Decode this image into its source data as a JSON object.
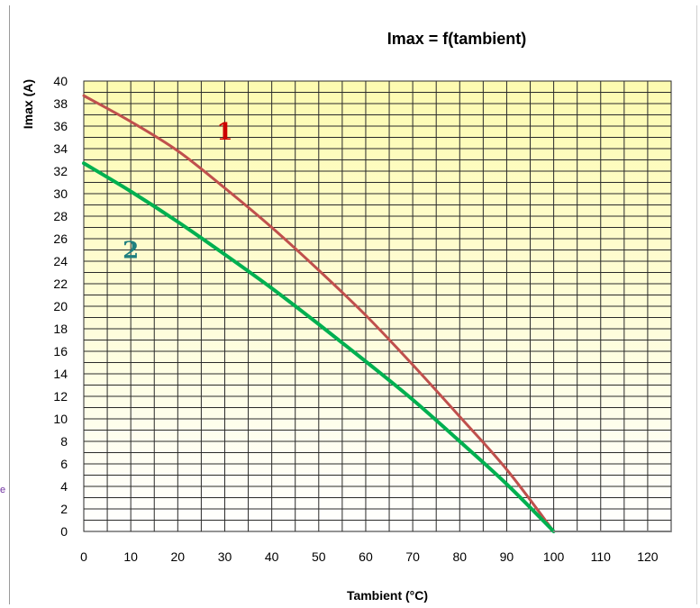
{
  "chart_data": {
    "type": "line",
    "title": "Imax = f(tambient)",
    "xlabel": "Tambient (°C)",
    "ylabel": "Imax (A)",
    "xlim": [
      0,
      125
    ],
    "ylim": [
      0,
      40
    ],
    "x_ticks": [
      0,
      10,
      20,
      30,
      40,
      50,
      60,
      70,
      80,
      90,
      100,
      110,
      120
    ],
    "y_ticks": [
      0,
      2,
      4,
      6,
      8,
      10,
      12,
      14,
      16,
      18,
      20,
      22,
      24,
      26,
      28,
      30,
      32,
      34,
      36,
      38,
      40
    ],
    "grid": true,
    "series": [
      {
        "name": "1",
        "color": "#c0504d",
        "x": [
          0,
          10,
          20,
          30,
          40,
          50,
          60,
          70,
          80,
          90,
          100
        ],
        "y": [
          38.7,
          36.4,
          33.8,
          30.5,
          27.0,
          23.2,
          19.2,
          14.8,
          10.2,
          5.5,
          0
        ]
      },
      {
        "name": "2",
        "color": "#00b050",
        "x": [
          0,
          10,
          20,
          30,
          40,
          50,
          60,
          70,
          80,
          90,
          100
        ],
        "y": [
          32.7,
          30.2,
          27.5,
          24.6,
          21.6,
          18.4,
          15.1,
          11.7,
          8.0,
          4.2,
          0
        ]
      },
      {
        "name": "",
        "color": "#7f7f7f",
        "x": [
          100,
          125
        ],
        "y": [
          0,
          0
        ]
      }
    ],
    "annotations": [
      {
        "text": "1",
        "x": 30,
        "y": 34.8,
        "color": "#cc0000"
      },
      {
        "text": "2",
        "x": 10,
        "y": 24.3,
        "color": "#1f7f7f"
      }
    ]
  },
  "stray_text": "e"
}
